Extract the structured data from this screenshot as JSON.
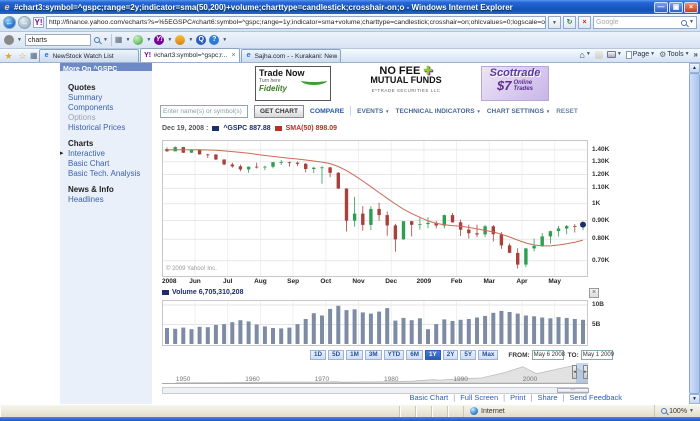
{
  "window": {
    "title": "#chart3:symbol=^gspc;range=2y;indicator=sma(50,200)+volume;charttype=candlestick;crosshair-on;o - Windows Internet Explorer"
  },
  "address_bar": {
    "url": "http://finance.yahoo.com/echarts?s=%5EGSPC#chart6:symbol=^gspc;range=1y;indicator=sma+volume;charttype=candlestick;crosshair=on;ohlcvalues=0;logscale=on;source",
    "search_placeholder": "Google"
  },
  "browser_toolbar": {
    "search_value": "charts"
  },
  "tabs": [
    {
      "label": "NewStock Watch List"
    },
    {
      "label": "#chart3:symbol=^gspc;r...",
      "close": "×",
      "active": true
    },
    {
      "label": "Sajha.com - - Kurakani: New..."
    }
  ],
  "command_bar": {
    "page": "Page",
    "tools": "Tools",
    "overflow": "»"
  },
  "sidebar": {
    "header": "More On ^GSPC",
    "disabled_item": "Options",
    "marker_item": "Interactive",
    "sections": [
      {
        "title": "Quotes",
        "items": [
          "Summary",
          "Components",
          "Options",
          "Historical Prices"
        ]
      },
      {
        "title": "Charts",
        "items": [
          "Interactive",
          "Basic Chart",
          "Basic Tech. Analysis"
        ]
      },
      {
        "title": "News & Info",
        "items": [
          "Headlines"
        ]
      }
    ]
  },
  "ads": {
    "fidelity": {
      "line1": "Trade Now",
      "line2": "Turn here",
      "brand": "Fidelity"
    },
    "etrade": {
      "line1": "NO FEE",
      "plus": "✚",
      "line2": "MUTUAL FUNDS",
      "line3": "E*TRADE SECURITIES LLC"
    },
    "scottrade": {
      "brand": "Scottrade",
      "price": "$7",
      "line2": "Online",
      "line3": "Trades"
    }
  },
  "chart_toolbar": {
    "input_placeholder": "Enter name(s) or symbol(s)",
    "get_chart": "GET CHART",
    "compare": "COMPARE",
    "events": "EVENTS",
    "technical_indicators": "TECHNICAL INDICATORS",
    "chart_settings": "CHART SETTINGS",
    "reset": "RESET"
  },
  "chart_data": {
    "type": "candlestick",
    "symbol": "^GSPC",
    "log_scale": true,
    "legend": {
      "date": "Dec 19, 2008 :",
      "series": [
        {
          "name": "^GSPC",
          "value": "887.88",
          "color": "#1c2d6b"
        },
        {
          "name": "SMA(50)",
          "value": "898.09",
          "color": "#b03326"
        }
      ]
    },
    "y_ticks": [
      {
        "label": "1.40K",
        "value": 1400
      },
      {
        "label": "1.30K",
        "value": 1300
      },
      {
        "label": "1.20K",
        "value": 1200
      },
      {
        "label": "1.10K",
        "value": 1100
      },
      {
        "label": "1K",
        "value": 1000
      },
      {
        "label": "0.90K",
        "value": 900
      },
      {
        "label": "0.80K",
        "value": 800
      },
      {
        "label": "0.70K",
        "value": 700
      }
    ],
    "y_domain": [
      640,
      1480
    ],
    "x_labels": [
      "2008",
      "Jun",
      "Jul",
      "Aug",
      "Sep",
      "Oct",
      "Nov",
      "Dec",
      "2009",
      "Feb",
      "Mar",
      "Apr",
      "May"
    ],
    "colors": {
      "up": "#2f9e52",
      "down": "#a8403c",
      "sma": "#cc6a58",
      "marker_dot": "#1c2d6b",
      "volume_bar": "#7d8ca3"
    },
    "weekly_ohlc": [
      [
        1407,
        1422,
        1384,
        1388
      ],
      [
        1388,
        1432,
        1386,
        1425
      ],
      [
        1425,
        1426,
        1373,
        1376
      ],
      [
        1376,
        1406,
        1373,
        1400
      ],
      [
        1400,
        1404,
        1359,
        1361
      ],
      [
        1361,
        1366,
        1331,
        1360
      ],
      [
        1360,
        1362,
        1314,
        1318
      ],
      [
        1318,
        1321,
        1272,
        1278
      ],
      [
        1278,
        1292,
        1252,
        1263
      ],
      [
        1263,
        1277,
        1225,
        1239
      ],
      [
        1239,
        1262,
        1214,
        1260
      ],
      [
        1260,
        1291,
        1246,
        1258
      ],
      [
        1258,
        1268,
        1234,
        1260
      ],
      [
        1260,
        1298,
        1247,
        1296
      ],
      [
        1296,
        1313,
        1274,
        1298
      ],
      [
        1298,
        1300,
        1261,
        1292
      ],
      [
        1292,
        1302,
        1265,
        1283
      ],
      [
        1283,
        1290,
        1217,
        1242
      ],
      [
        1242,
        1259,
        1211,
        1252
      ],
      [
        1252,
        1265,
        1133,
        1255
      ],
      [
        1255,
        1258,
        1179,
        1213
      ],
      [
        1213,
        1218,
        1098,
        1099
      ],
      [
        1099,
        1101,
        840,
        899
      ],
      [
        899,
        1044,
        865,
        940
      ],
      [
        940,
        985,
        845,
        876
      ],
      [
        876,
        984,
        848,
        968
      ],
      [
        968,
        1006,
        899,
        931
      ],
      [
        931,
        952,
        818,
        873
      ],
      [
        873,
        882,
        741,
        800
      ],
      [
        800,
        896,
        798,
        896
      ],
      [
        896,
        898,
        815,
        876
      ],
      [
        876,
        918,
        851,
        880
      ],
      [
        880,
        918,
        857,
        887
      ],
      [
        887,
        897,
        857,
        872
      ],
      [
        872,
        934,
        857,
        931
      ],
      [
        931,
        943,
        888,
        890
      ],
      [
        890,
        905,
        817,
        850
      ],
      [
        850,
        877,
        804,
        831
      ],
      [
        831,
        877,
        811,
        825
      ],
      [
        825,
        875,
        812,
        868
      ],
      [
        868,
        875,
        789,
        826
      ],
      [
        826,
        837,
        754,
        770
      ],
      [
        770,
        780,
        734,
        735
      ],
      [
        735,
        757,
        666,
        683
      ],
      [
        683,
        758,
        672,
        756
      ],
      [
        756,
        803,
        742,
        768
      ],
      [
        768,
        833,
        763,
        815
      ],
      [
        815,
        845,
        779,
        842
      ],
      [
        842,
        870,
        814,
        856
      ],
      [
        856,
        875,
        826,
        869
      ],
      [
        869,
        880,
        835,
        866
      ],
      [
        866,
        888,
        847,
        877
      ]
    ],
    "sma50": [
      1400,
      1401,
      1402,
      1402,
      1401,
      1399,
      1396,
      1391,
      1385,
      1378,
      1370,
      1361,
      1352,
      1344,
      1336,
      1329,
      1322,
      1314,
      1306,
      1297,
      1285,
      1262,
      1230,
      1192,
      1152,
      1112,
      1072,
      1034,
      998,
      966,
      940,
      918,
      898,
      884,
      876,
      872,
      868,
      862,
      854,
      846,
      838,
      826,
      812,
      796,
      782,
      772,
      768,
      768,
      772,
      778,
      786,
      796
    ],
    "volume": {
      "legend": "Volume 6,705,310,208",
      "y_ticks": [
        {
          "label": "10B",
          "value": 10
        },
        {
          "label": "5B",
          "value": 5
        }
      ],
      "values_billions": [
        4.1,
        3.9,
        4.2,
        3.8,
        4.4,
        4.3,
        4.9,
        5.1,
        5.6,
        6.1,
        5.8,
        5.0,
        4.5,
        4.1,
        4.0,
        4.2,
        5.1,
        6.4,
        7.9,
        7.3,
        9.0,
        9.8,
        8.7,
        8.9,
        8.1,
        7.8,
        8.3,
        9.2,
        6.0,
        6.7,
        6.1,
        6.6,
        3.8,
        5.1,
        6.3,
        5.9,
        6.2,
        6.4,
        6.8,
        7.2,
        8.0,
        8.5,
        8.2,
        7.8,
        7.3,
        7.1,
        6.8,
        6.6,
        6.9,
        6.7,
        6.4,
        6.2
      ]
    },
    "copyright": "© 2009 Yahoo! Inc.",
    "timeline": {
      "year_labels": [
        "1950",
        "1960",
        "1970",
        "1980",
        "1990",
        "2000"
      ],
      "points": [
        [
          1950,
          20
        ],
        [
          1954,
          34
        ],
        [
          1958,
          46
        ],
        [
          1962,
          65
        ],
        [
          1966,
          92
        ],
        [
          1970,
          85
        ],
        [
          1973,
          115
        ],
        [
          1974,
          70
        ],
        [
          1978,
          98
        ],
        [
          1981,
          130
        ],
        [
          1984,
          165
        ],
        [
          1987,
          300
        ],
        [
          1988,
          260
        ],
        [
          1991,
          380
        ],
        [
          1994,
          460
        ],
        [
          1997,
          880
        ],
        [
          2000,
          1480
        ],
        [
          2002,
          850
        ],
        [
          2004,
          1130
        ],
        [
          2007,
          1550
        ],
        [
          2008,
          1280
        ],
        [
          2009,
          880
        ]
      ]
    }
  },
  "range_controls": {
    "buttons": [
      "1D",
      "5D",
      "1M",
      "3M",
      "YTD",
      "6M",
      "1Y",
      "2Y",
      "5Y",
      "Max"
    ],
    "selected": "1Y",
    "from_label": "FROM:",
    "from_value": "May 6 2008",
    "to_label": "TO:",
    "to_value": "May 1 2009"
  },
  "footer_links": [
    "Basic Chart",
    "Full Screen",
    "Print",
    "Share",
    "Send Feedback"
  ],
  "status_bar": {
    "zone": "Internet",
    "zoom_level": "100%"
  },
  "icons": {
    "ie_logo": "e",
    "yahoo_logo": "Y!",
    "back": "←",
    "forward": "→",
    "refresh": "↻",
    "stop": "×",
    "dropdown": "▼",
    "star": "★",
    "star_add": "☆",
    "quick_tabs": "▦",
    "home": "⌂",
    "gear": "⚙",
    "minimize": "—",
    "restore": "▣",
    "close": "×",
    "scroll_up": "▲",
    "scroll_down": "▼",
    "slider_left": "◂",
    "slider_right": "▸",
    "handle_dots": "···",
    "volume_close": "×"
  }
}
